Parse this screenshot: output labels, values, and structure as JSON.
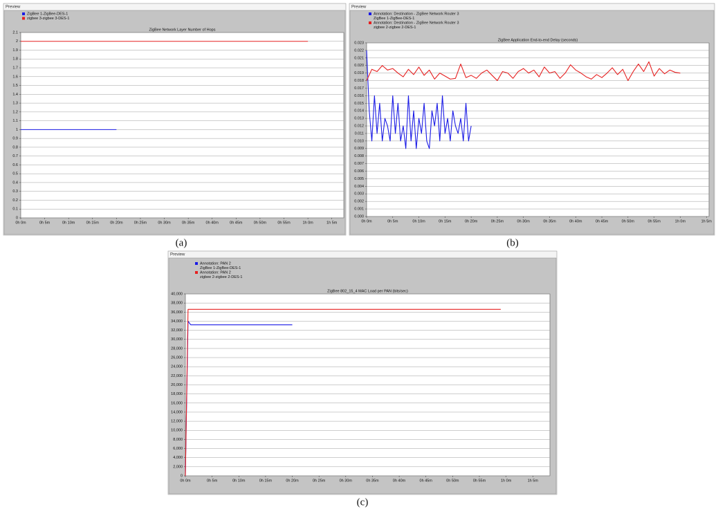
{
  "chart_data": [
    {
      "type": "line",
      "window_label": "Preview",
      "caption": "(a)",
      "title": "ZigBee Network Layer Number of Hops",
      "series": [
        {
          "name": "ZigBee 1-ZigBee-DES-1",
          "color": "#1a1ae6",
          "x": [
            0,
            20
          ],
          "values": [
            1,
            1
          ]
        },
        {
          "name": "zigbee 3-zigbee 3-DES-1",
          "color": "#e62020",
          "x": [
            0,
            60
          ],
          "values": [
            2,
            2
          ]
        }
      ],
      "xlim": [
        0,
        67.5
      ],
      "xticks": [
        {
          "value": 0,
          "label": "0h 0m"
        },
        {
          "value": 5,
          "label": "0h 5m"
        },
        {
          "value": 10,
          "label": "0h 10m"
        },
        {
          "value": 15,
          "label": "0h 15m"
        },
        {
          "value": 20,
          "label": "0h 20m"
        },
        {
          "value": 25,
          "label": "0h 25m"
        },
        {
          "value": 30,
          "label": "0h 30m"
        },
        {
          "value": 35,
          "label": "0h 35m"
        },
        {
          "value": 40,
          "label": "0h 40m"
        },
        {
          "value": 45,
          "label": "0h 45m"
        },
        {
          "value": 50,
          "label": "0h 50m"
        },
        {
          "value": 55,
          "label": "0h 55m"
        },
        {
          "value": 60,
          "label": "1h 0m"
        },
        {
          "value": 65,
          "label": "1h 5m"
        }
      ],
      "ylim": [
        0,
        2.1
      ],
      "yticks": [
        0,
        0.1,
        0.2,
        0.3,
        0.4,
        0.5,
        0.6,
        0.7,
        0.8,
        0.9,
        1,
        1.1,
        1.2,
        1.3,
        1.4,
        1.5,
        1.6,
        1.7,
        1.8,
        1.9,
        2,
        2.1
      ],
      "grid": true
    },
    {
      "type": "line",
      "window_label": "Preview",
      "caption": "(b)",
      "title": "ZigBee Application End-to-end Delay (seconds)",
      "series": [
        {
          "annotation": "Annotation: Destination - ZigBee Network Router 3",
          "name": "ZigBee 1-ZigBee-DES-1",
          "color": "#1a1ae6",
          "x": [
            0,
            0.5,
            1,
            1.5,
            2,
            2.5,
            3,
            3.5,
            4,
            4.5,
            5,
            5.5,
            6,
            6.5,
            7,
            7.5,
            8,
            8.5,
            9,
            9.5,
            10,
            10.5,
            11,
            11.5,
            12,
            12.5,
            13,
            13.5,
            14,
            14.5,
            15,
            15.5,
            16,
            16.5,
            17,
            17.5,
            18,
            18.5,
            19,
            19.5,
            20
          ],
          "values": [
            0.022,
            0.014,
            0.01,
            0.016,
            0.011,
            0.015,
            0.01,
            0.013,
            0.012,
            0.01,
            0.016,
            0.011,
            0.015,
            0.01,
            0.012,
            0.009,
            0.016,
            0.01,
            0.014,
            0.009,
            0.013,
            0.011,
            0.015,
            0.01,
            0.009,
            0.014,
            0.012,
            0.015,
            0.01,
            0.016,
            0.011,
            0.013,
            0.01,
            0.014,
            0.012,
            0.011,
            0.013,
            0.01,
            0.015,
            0.01,
            0.012
          ]
        },
        {
          "annotation": "Annotation: Destination - ZigBee Network Router 3",
          "name": "zigbee 2-zigbee 2-DES-1",
          "color": "#e62020",
          "x": [
            0,
            1,
            2,
            3,
            4,
            5,
            6,
            7,
            8,
            9,
            10,
            11,
            12,
            13,
            14,
            15,
            16,
            17,
            18,
            19,
            20,
            21,
            22,
            23,
            24,
            25,
            26,
            27,
            28,
            29,
            30,
            31,
            32,
            33,
            34,
            35,
            36,
            37,
            38,
            39,
            40,
            41,
            42,
            43,
            44,
            45,
            46,
            47,
            48,
            49,
            50,
            51,
            52,
            53,
            54,
            55,
            56,
            57,
            58,
            59,
            60
          ],
          "values": [
            0.018,
            0.0195,
            0.0192,
            0.02,
            0.0194,
            0.0196,
            0.019,
            0.0185,
            0.0195,
            0.0188,
            0.0198,
            0.0187,
            0.0194,
            0.0182,
            0.019,
            0.0186,
            0.0182,
            0.0183,
            0.0202,
            0.0184,
            0.0187,
            0.0183,
            0.019,
            0.0194,
            0.0187,
            0.018,
            0.0192,
            0.019,
            0.0183,
            0.0192,
            0.0196,
            0.019,
            0.0194,
            0.0185,
            0.0198,
            0.019,
            0.0192,
            0.0183,
            0.019,
            0.0201,
            0.0194,
            0.019,
            0.0185,
            0.0182,
            0.0188,
            0.0184,
            0.019,
            0.0197,
            0.0188,
            0.0195,
            0.018,
            0.0192,
            0.0202,
            0.0192,
            0.0205,
            0.0186,
            0.0196,
            0.0189,
            0.0194,
            0.0191,
            0.019
          ]
        }
      ],
      "xlim": [
        0,
        65.5
      ],
      "xticks": [
        {
          "value": 0,
          "label": "0h 0m"
        },
        {
          "value": 5,
          "label": "0h 5m"
        },
        {
          "value": 10,
          "label": "0h 10m"
        },
        {
          "value": 15,
          "label": "0h 15m"
        },
        {
          "value": 20,
          "label": "0h 20m"
        },
        {
          "value": 25,
          "label": "0h 25m"
        },
        {
          "value": 30,
          "label": "0h 30m"
        },
        {
          "value": 35,
          "label": "0h 35m"
        },
        {
          "value": 40,
          "label": "0h 40m"
        },
        {
          "value": 45,
          "label": "0h 45m"
        },
        {
          "value": 50,
          "label": "0h 50m"
        },
        {
          "value": 55,
          "label": "0h 55m"
        },
        {
          "value": 60,
          "label": "1h 0m"
        },
        {
          "value": 65,
          "label": "1h 5m"
        }
      ],
      "ylim": [
        0,
        0.023
      ],
      "yticks": [
        {
          "value": 0,
          "label": "0.000"
        },
        {
          "value": 0.001,
          "label": "0.001"
        },
        {
          "value": 0.002,
          "label": "0.002"
        },
        {
          "value": 0.003,
          "label": "0.003"
        },
        {
          "value": 0.004,
          "label": "0.004"
        },
        {
          "value": 0.005,
          "label": "0.005"
        },
        {
          "value": 0.006,
          "label": "0.006"
        },
        {
          "value": 0.007,
          "label": "0.007"
        },
        {
          "value": 0.008,
          "label": "0.008"
        },
        {
          "value": 0.009,
          "label": "0.009"
        },
        {
          "value": 0.01,
          "label": "0.010"
        },
        {
          "value": 0.011,
          "label": "0.011"
        },
        {
          "value": 0.012,
          "label": "0.012"
        },
        {
          "value": 0.013,
          "label": "0.013"
        },
        {
          "value": 0.014,
          "label": "0.014"
        },
        {
          "value": 0.015,
          "label": "0.015"
        },
        {
          "value": 0.016,
          "label": "0.016"
        },
        {
          "value": 0.017,
          "label": "0.017"
        },
        {
          "value": 0.018,
          "label": "0.018"
        },
        {
          "value": 0.019,
          "label": "0.019"
        },
        {
          "value": 0.02,
          "label": "0.020"
        },
        {
          "value": 0.021,
          "label": "0.021"
        },
        {
          "value": 0.022,
          "label": "0.022"
        },
        {
          "value": 0.023,
          "label": "0.023"
        }
      ],
      "grid": true
    },
    {
      "type": "line",
      "window_label": "Preview",
      "caption": "(c)",
      "title": "ZigBee 802_15_4 MAC Load per PAN (bits/sec)",
      "series": [
        {
          "annotation": "Annotation: PAN 2",
          "name": "ZigBee 1-ZigBee-DES-1",
          "color": "#1a1ae6",
          "x": [
            0,
            0.5,
            1,
            20
          ],
          "values": [
            0,
            34000,
            33200,
            33200
          ]
        },
        {
          "annotation": "Annotation: PAN 2",
          "name": "zigbee 2-zigbee 2-DES-1",
          "color": "#e62020",
          "x": [
            0,
            0.5,
            59
          ],
          "values": [
            0,
            36600,
            36600
          ]
        }
      ],
      "xlim": [
        0,
        68.2
      ],
      "xticks": [
        {
          "value": 0,
          "label": "0h 0m"
        },
        {
          "value": 5,
          "label": "0h 5m"
        },
        {
          "value": 10,
          "label": "0h 10m"
        },
        {
          "value": 15,
          "label": "0h 15m"
        },
        {
          "value": 20,
          "label": "0h 20m"
        },
        {
          "value": 25,
          "label": "0h 25m"
        },
        {
          "value": 30,
          "label": "0h 30m"
        },
        {
          "value": 35,
          "label": "0h 35m"
        },
        {
          "value": 40,
          "label": "0h 40m"
        },
        {
          "value": 45,
          "label": "0h 45m"
        },
        {
          "value": 50,
          "label": "0h 50m"
        },
        {
          "value": 55,
          "label": "0h 55m"
        },
        {
          "value": 60,
          "label": "1h 0m"
        },
        {
          "value": 65,
          "label": "1h 5m"
        }
      ],
      "ylim": [
        0,
        40000
      ],
      "yticks": [
        0,
        {
          "value": 2000,
          "label": "2,000"
        },
        {
          "value": 4000,
          "label": "4,000"
        },
        {
          "value": 6000,
          "label": "6,000"
        },
        {
          "value": 8000,
          "label": "8,000"
        },
        {
          "value": 10000,
          "label": "10,000"
        },
        {
          "value": 12000,
          "label": "12,000"
        },
        {
          "value": 14000,
          "label": "14,000"
        },
        {
          "value": 16000,
          "label": "16,000"
        },
        {
          "value": 18000,
          "label": "18,000"
        },
        {
          "value": 20000,
          "label": "20,000"
        },
        {
          "value": 22000,
          "label": "22,000"
        },
        {
          "value": 24000,
          "label": "24,000"
        },
        {
          "value": 26000,
          "label": "26,000"
        },
        {
          "value": 28000,
          "label": "28,000"
        },
        {
          "value": 30000,
          "label": "30,000"
        },
        {
          "value": 32000,
          "label": "32,000"
        },
        {
          "value": 34000,
          "label": "34,000"
        },
        {
          "value": 36000,
          "label": "36,000"
        },
        {
          "value": 38000,
          "label": "38,000"
        },
        {
          "value": 40000,
          "label": "40,000"
        }
      ],
      "grid": true
    }
  ]
}
